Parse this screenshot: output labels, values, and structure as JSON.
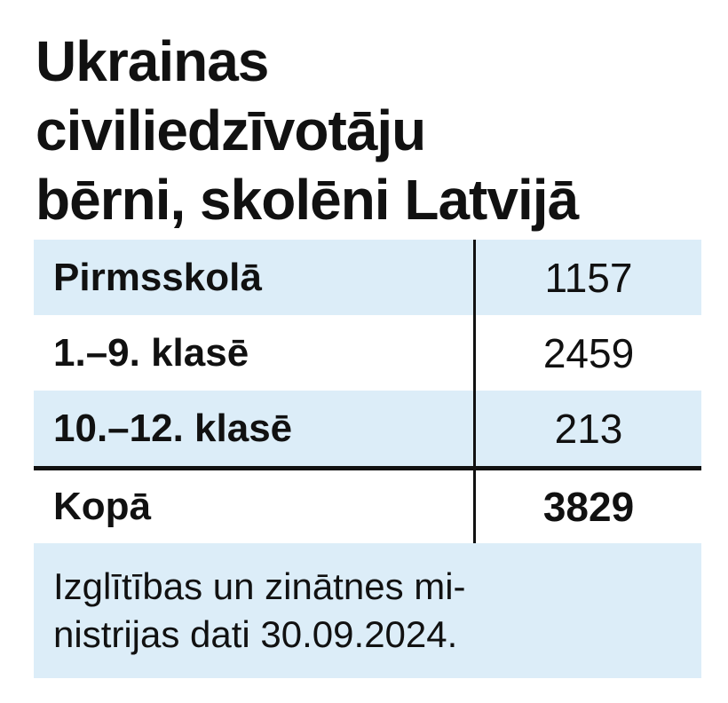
{
  "title": [
    "Ukrainas",
    "civiliedzīvotāju",
    "bērni, skolēni Latvijā"
  ],
  "table": {
    "rows": [
      [
        "Pirmsskolā",
        1157
      ],
      [
        "1.–9. klasē",
        2459
      ],
      [
        "10.–12. klasē",
        213
      ]
    ],
    "total": [
      "Kopā",
      3829
    ]
  },
  "footnote": [
    "Izglītības un zinātnes mi-",
    "nistrijas dati 30.09.2024."
  ]
}
